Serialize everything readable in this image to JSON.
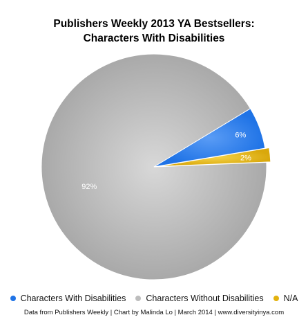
{
  "chart_data": {
    "type": "pie",
    "title_lines": [
      "Publishers Weekly 2013 YA Bestsellers:",
      "Characters With Disabilities"
    ],
    "slices": [
      {
        "name": "Characters With Disabilities",
        "value": 6,
        "label": "6%",
        "color": "#1f73e6"
      },
      {
        "name": "Characters Without Disabilities",
        "value": 92,
        "label": "92%",
        "color": "#bdbdbd"
      },
      {
        "name": "N/A",
        "value": 2,
        "label": "2%",
        "color": "#e3b20e"
      }
    ],
    "legend_position": "bottom",
    "source_note": "Data from Publishers Weekly | Chart by Malinda Lo | March 2014 | www.diversityinya.com"
  }
}
